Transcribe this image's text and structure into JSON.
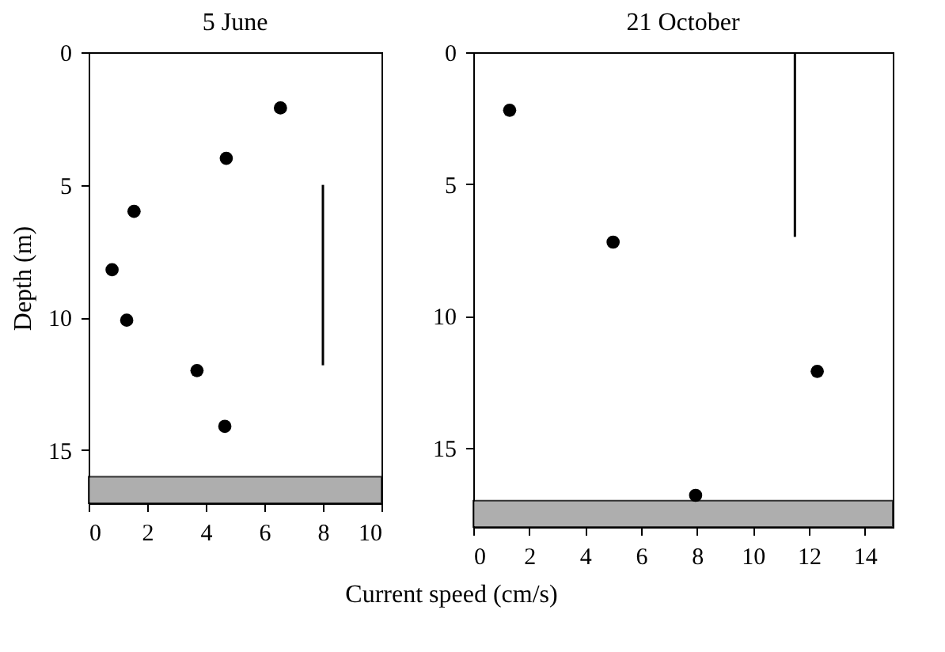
{
  "chart_data": [
    {
      "type": "scatter",
      "title": "5 June",
      "xlabel": "Current speed (cm/s)",
      "ylabel": "Depth (m)",
      "xlim": [
        0,
        10
      ],
      "xticks": [
        0,
        2,
        4,
        6,
        8,
        10
      ],
      "ylim": [
        17,
        0
      ],
      "yticks": [
        0,
        5,
        10,
        15
      ],
      "grid": false,
      "series": [
        {
          "type": "scatter",
          "marker": "circle",
          "color": "#000000",
          "x": [
            6.55,
            4.7,
            1.55,
            0.8,
            1.3,
            3.7,
            4.65
          ],
          "values": [
            2.1,
            4.0,
            6.0,
            8.2,
            10.1,
            12.0,
            14.1
          ]
        },
        {
          "type": "line",
          "color": "#000000",
          "x": [
            8,
            8
          ],
          "values": [
            5,
            11.8
          ]
        }
      ],
      "bands": [
        {
          "axis": "y",
          "from": 16,
          "to": 17,
          "color": "#9a9a9a"
        }
      ]
    },
    {
      "type": "scatter",
      "title": "21 October",
      "xlim": [
        0,
        15
      ],
      "xticks": [
        0,
        2,
        4,
        6,
        8,
        10,
        12,
        14
      ],
      "ylim": [
        18,
        0
      ],
      "yticks": [
        0,
        5,
        10,
        15
      ],
      "grid": false,
      "series": [
        {
          "type": "scatter",
          "marker": "circle",
          "color": "#000000",
          "x": [
            1.3,
            5.0,
            12.3,
            7.95
          ],
          "values": [
            2.2,
            7.2,
            12.1,
            16.8
          ]
        },
        {
          "type": "line",
          "color": "#000000",
          "x": [
            11.5,
            11.5
          ],
          "values": [
            0,
            7
          ]
        }
      ],
      "bands": [
        {
          "axis": "y",
          "from": 17,
          "to": 18,
          "color": "#9a9a9a"
        }
      ]
    }
  ]
}
